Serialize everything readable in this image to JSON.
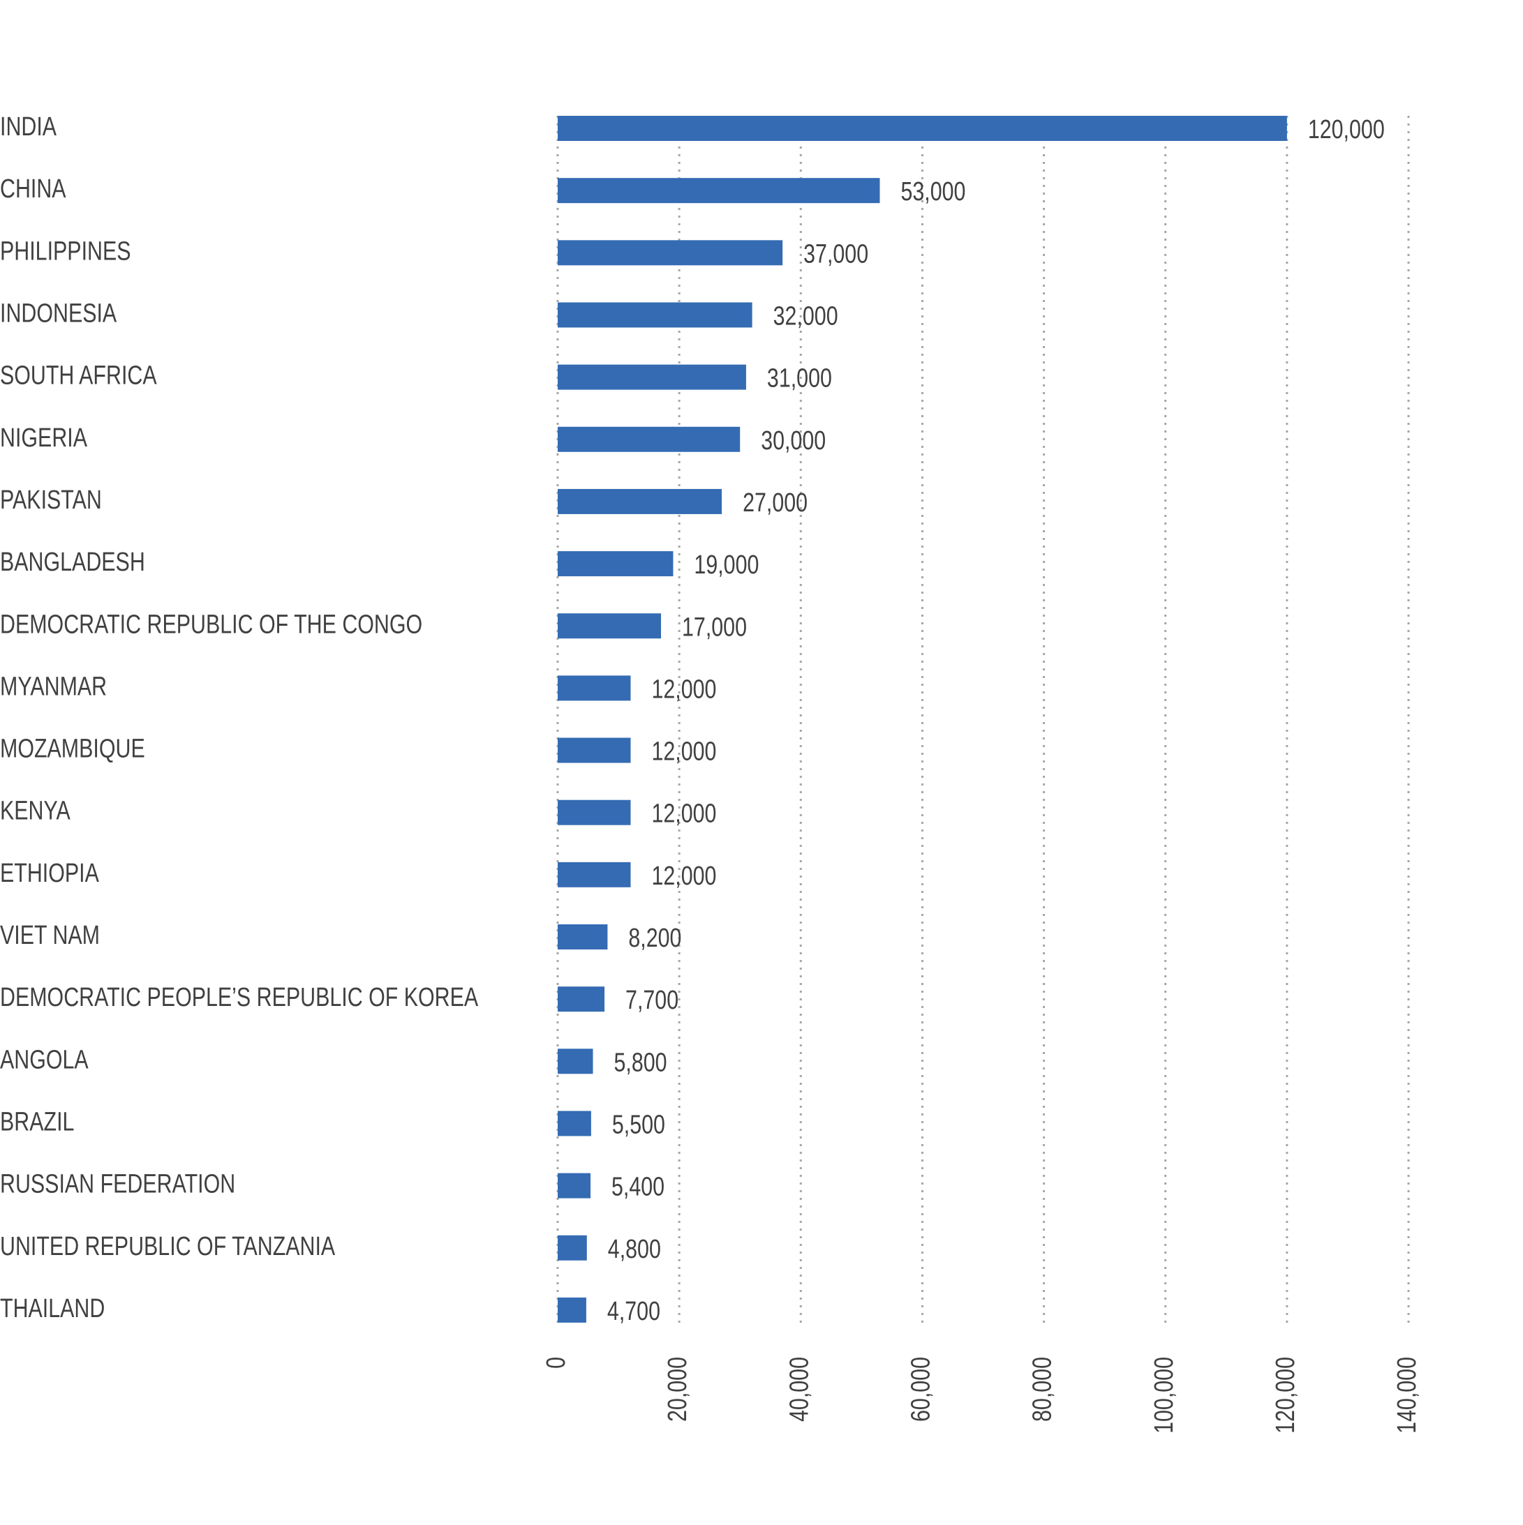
{
  "chart_data": {
    "type": "bar",
    "orientation": "horizontal",
    "categories": [
      "INDIA",
      "CHINA",
      "PHILIPPINES",
      "INDONESIA",
      "SOUTH AFRICA",
      "NIGERIA",
      "PAKISTAN",
      "BANGLADESH",
      "DEMOCRATIC REPUBLIC OF THE CONGO",
      "MYANMAR",
      "MOZAMBIQUE",
      "KENYA",
      "ETHIOPIA",
      "VIET NAM",
      "DEMOCRATIC PEOPLE’S REPUBLIC OF KOREA",
      "ANGOLA",
      "BRAZIL",
      "RUSSIAN FEDERATION",
      "UNITED REPUBLIC OF TANZANIA",
      "THAILAND"
    ],
    "values": [
      120000,
      53000,
      37000,
      32000,
      31000,
      30000,
      27000,
      19000,
      17000,
      12000,
      12000,
      12000,
      12000,
      8200,
      7700,
      5800,
      5500,
      5400,
      4800,
      4700
    ],
    "value_labels": [
      "120,000",
      "53,000",
      "37,000",
      "32,000",
      "31,000",
      "30,000",
      "27,000",
      "19,000",
      "17,000",
      "12,000",
      "12,000",
      "12,000",
      "12,000",
      "8,200",
      "7,700",
      "5,800",
      "5,500",
      "5,400",
      "4,800",
      "4,700"
    ],
    "color": "#346bb3",
    "xlim": [
      0,
      140000
    ],
    "xticks": [
      0,
      {
        "value": 20000,
        "label": "20,000"
      },
      {
        "value": 40000,
        "label": "40,000"
      },
      {
        "value": 60000,
        "label": "60,000"
      },
      {
        "value": 80000,
        "label": "80,000"
      },
      {
        "value": 100000,
        "label": "100,000"
      },
      {
        "value": 120000,
        "label": "120,000"
      },
      {
        "value": 140000,
        "label": "140,000"
      }
    ],
    "grid": true
  }
}
